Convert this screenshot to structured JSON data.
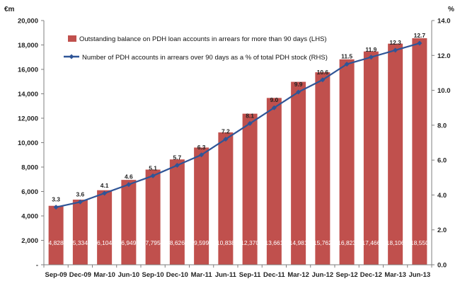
{
  "chart_data": {
    "type": "bar",
    "left_unit": "€m",
    "right_unit": "%",
    "categories": [
      "Sep-09",
      "Dec-09",
      "Mar-10",
      "Jun-10",
      "Sep-10",
      "Dec-10",
      "Mar-11",
      "Jun-11",
      "Sep-11",
      "Dec-11",
      "Mar-12",
      "Jun-12",
      "Sep-12",
      "Dec-12",
      "Mar-13",
      "Jun-13"
    ],
    "y_left_ticks": [
      "-",
      "2,000",
      "4,000",
      "6,000",
      "8,000",
      "10,000",
      "12,000",
      "14,000",
      "16,000",
      "18,000",
      "20,000"
    ],
    "y_right_ticks": [
      "0.0",
      "2.0",
      "4.0",
      "6.0",
      "8.0",
      "10.0",
      "12.0",
      "14.0"
    ],
    "ylim_left": [
      0,
      20000
    ],
    "ylim_right": [
      0,
      14
    ],
    "grid": false,
    "legend_position": "top-left",
    "series": [
      {
        "name": "Outstanding balance on PDH loan accounts in arrears for more than 90 days (LHS)",
        "type": "bar",
        "axis": "left",
        "color": "#c0504d",
        "values": [
          4828,
          5334,
          6104,
          6949,
          7795,
          8626,
          9599,
          10838,
          12370,
          13661,
          14981,
          15762,
          16823,
          17466,
          18106,
          18550
        ],
        "labels": [
          "4,828",
          "5,334",
          "6,104",
          "6,949",
          "7,795",
          "8,626",
          "9,599",
          "10,838",
          "12,370",
          "13,661",
          "14,981",
          "15,762",
          "16,823",
          "17,466",
          "18,106",
          "18,550"
        ]
      },
      {
        "name": "Number of PDH accounts in arrears over 90 days as a % of total PDH stock (RHS)",
        "type": "line",
        "axis": "right",
        "color": "#2f5597",
        "values": [
          3.3,
          3.6,
          4.1,
          4.6,
          5.1,
          5.7,
          6.3,
          7.2,
          8.1,
          9.0,
          9.9,
          10.6,
          11.5,
          11.9,
          12.3,
          12.7
        ],
        "labels": [
          "3.3",
          "3.6",
          "4.1",
          "4.6",
          "5.1",
          "5.7",
          "6.3",
          "7.2",
          "8.1",
          "9.0",
          "9.9",
          "10.6",
          "11.5",
          "11.9",
          "12.3",
          "12.7"
        ]
      }
    ]
  }
}
